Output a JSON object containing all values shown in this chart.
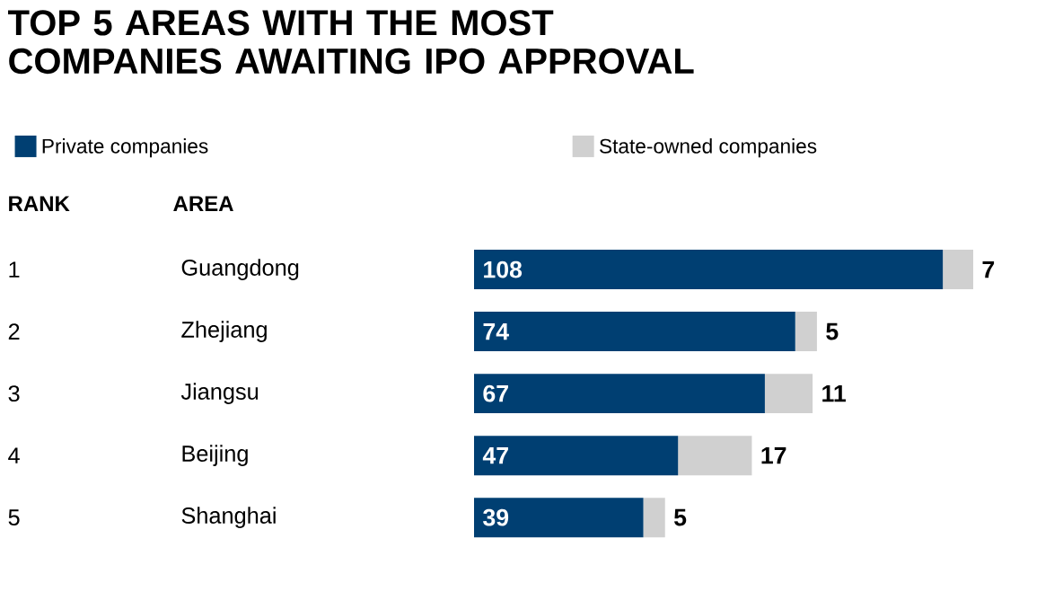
{
  "chart_data": {
    "type": "bar",
    "orientation": "horizontal",
    "stacked": true,
    "data_labels": true,
    "legend": "top left",
    "tick_labels": "y",
    "title": "TOP 5 AREAS WITH THE MOST COMPANIES AWAITING IPO APPROVAL",
    "categories": [
      "Guangdong",
      "Zhejiang",
      "Jiangsu",
      "Beijing",
      "Shanghai"
    ],
    "series": [
      {
        "name": "Private companies",
        "color": "#003f72",
        "values": [
          108,
          74,
          67,
          47,
          39
        ]
      },
      {
        "name": "State-owned companies",
        "color": "#d0d0d0",
        "values": [
          7,
          5,
          11,
          17,
          5
        ]
      }
    ],
    "annotations": [
      "RANK",
      "AREA",
      "1",
      "2",
      "3",
      "4",
      "5"
    ]
  }
}
